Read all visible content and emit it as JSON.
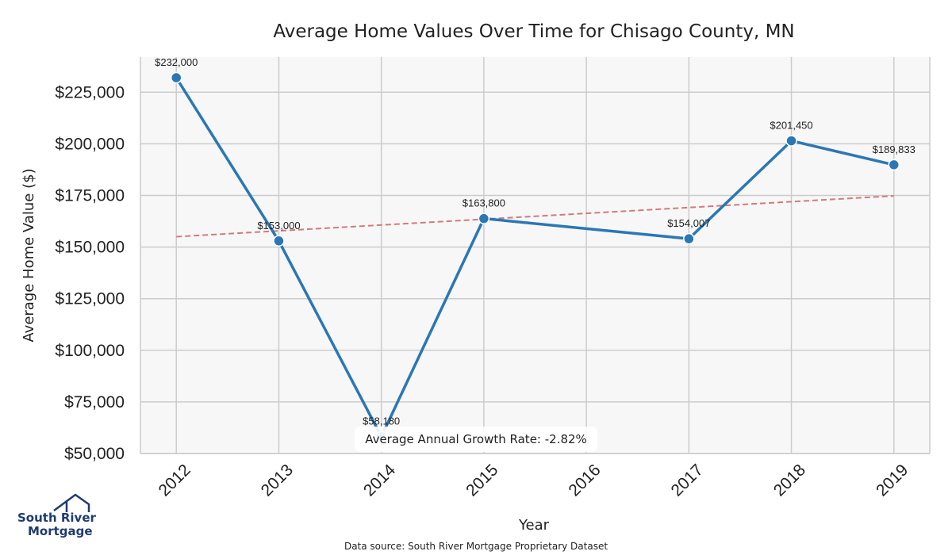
{
  "chart_data": {
    "type": "line",
    "title": "Average Home Values Over Time for Chisago County, MN",
    "xlabel": "Year",
    "ylabel": "Average Home Value ($)",
    "categories": [
      "2012",
      "2013",
      "2014",
      "2015",
      "2016",
      "2017",
      "2018",
      "2019"
    ],
    "series": [
      {
        "x": [
          2012,
          2013,
          2014,
          2015,
          2017,
          2018,
          2019
        ],
        "values": [
          232000,
          153000,
          58180,
          163800,
          154007,
          201450,
          189833
        ],
        "labels": [
          "$232,000",
          "$153,000",
          "$58,180",
          "$163,800",
          "$154,007",
          "$201,450",
          "$189,833"
        ],
        "color": "#2a77b5"
      }
    ],
    "trendline": {
      "x": [
        2012,
        2019
      ],
      "values": [
        155000,
        174800
      ],
      "color": "#d47a7a",
      "style": "dashed"
    },
    "ylim": [
      50000,
      242000
    ],
    "yticks": [
      50000,
      75000,
      100000,
      125000,
      150000,
      175000,
      200000,
      225000
    ],
    "ytick_labels": [
      "$50,000",
      "$75,000",
      "$100,000",
      "$125,000",
      "$150,000",
      "$175,000",
      "$200,000",
      "$225,000"
    ],
    "xlim": [
      2011.65,
      2019.35
    ],
    "grid": true,
    "annotation": "Average Annual Growth Rate: -2.82%",
    "source": "Data source: South River Mortgage Proprietary Dataset",
    "colors": {
      "plot_bg": "#f7f7f7",
      "grid": "#cccccc",
      "frame": "#cccccc"
    }
  },
  "logo": {
    "line1": "South River",
    "line2": "Mortgage"
  }
}
